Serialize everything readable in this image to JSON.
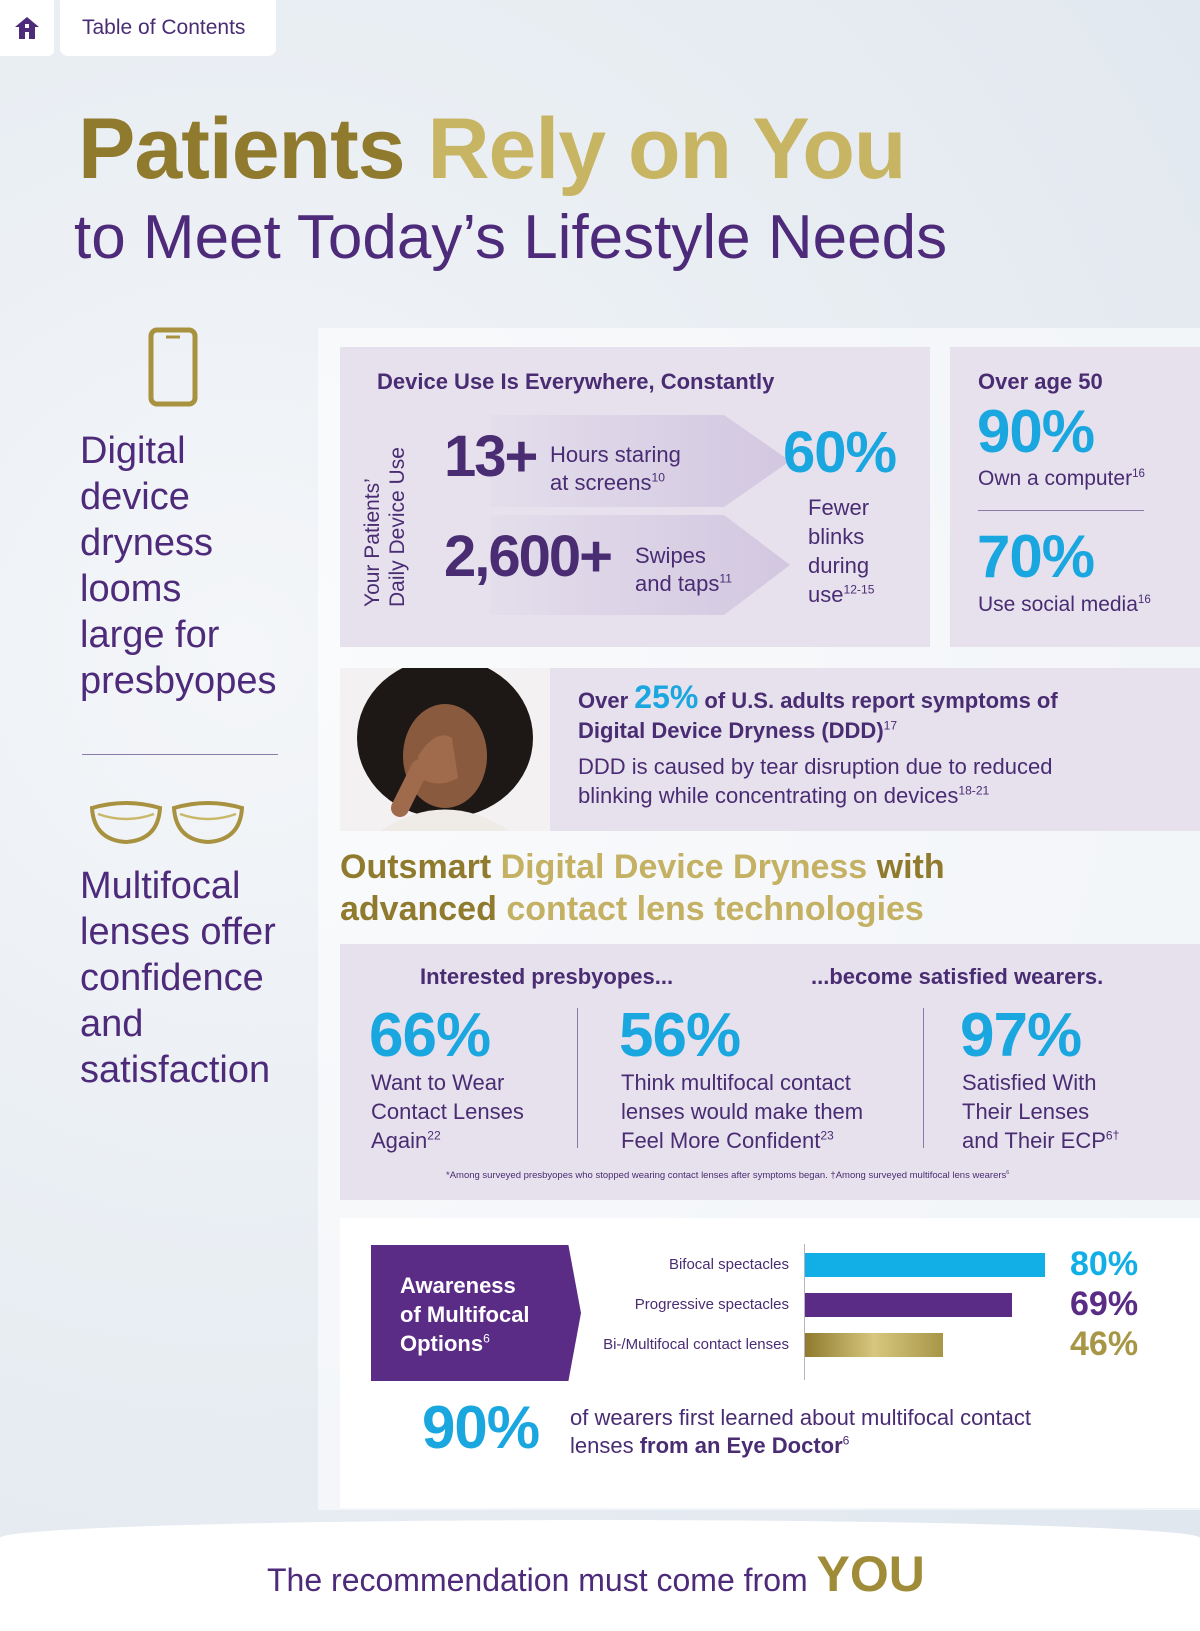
{
  "nav": {
    "home_icon": "home-icon",
    "toc_label": "Table of Contents"
  },
  "header": {
    "title_part1": "Patients ",
    "title_part2": "Rely on You",
    "subtitle": "to Meet Today’s Lifestyle Needs"
  },
  "left": {
    "phone_icon": "smartphone-icon",
    "dryness_text": [
      "Digital",
      "device",
      "dryness",
      "looms",
      "large for",
      "presbyopes"
    ],
    "lens_icon": "contact-lenses-icon",
    "multifocal_text": [
      "Multifocal",
      "lenses offer",
      "confidence",
      "and",
      "satisfaction"
    ]
  },
  "device_use": {
    "heading": "Device Use Is Everywhere, Constantly",
    "side_label_1": "Your Patients’",
    "side_label_2": "Daily Device Use",
    "stat1_value": "13+",
    "stat1_text_1": "Hours staring",
    "stat1_text_2": "at screens",
    "stat1_ref": "10",
    "stat2_value": "2,600+",
    "stat2_text_1": "Swipes",
    "stat2_text_2": "and taps",
    "stat2_ref": "11",
    "blink_value": "60%",
    "blink_text": [
      "Fewer",
      "blinks",
      "during",
      "use"
    ],
    "blink_ref": "12-15"
  },
  "over50": {
    "heading": "Over age 50",
    "stat1_value": "90%",
    "stat1_text": "Own a computer",
    "stat1_ref": "16",
    "stat2_value": "70%",
    "stat2_text": "Use social media",
    "stat2_ref": "16"
  },
  "ddd": {
    "lead_1": "Over ",
    "lead_pct": "25%",
    "lead_2": " of U.S. adults report symptoms of",
    "lead_3": "Digital Device Dryness (DDD)",
    "lead_ref": "17",
    "body_1": "DDD is caused by tear disruption due to reduced",
    "body_2": "blinking while concentrating on devices",
    "body_ref": "18-21"
  },
  "outsmart": {
    "line1_a": "Outsmart ",
    "line1_b": "Digital Device Dryness ",
    "line1_c": "with",
    "line2_a": "advanced ",
    "line2_b": "contact lens technologies"
  },
  "presbyopes": {
    "heading_left": "Interested presbyopes...",
    "heading_right": "...become satisfied wearers.",
    "stat1_value": "66%",
    "stat1_text": [
      "Want to Wear",
      "Contact Lenses",
      "Again"
    ],
    "stat1_ref": "22",
    "stat2_value": "56%",
    "stat2_text": [
      "Think multifocal contact",
      "lenses would make them",
      "Feel More Confident"
    ],
    "stat2_ref": "23",
    "stat3_value": "97%",
    "stat3_text": [
      "Satisfied With",
      "Their Lenses",
      "and Their ECP"
    ],
    "stat3_ref": "6†",
    "footnote": "*Among surveyed presbyopes who stopped wearing contact lenses after symptoms began.  †Among surveyed multifocal lens wearers",
    "footnote_ref": "6"
  },
  "awareness": {
    "badge_1": "Awareness",
    "badge_2": "of Multifocal",
    "badge_3": "Options",
    "badge_ref": "6",
    "bottom_value": "90%",
    "bottom_text_1": "of wearers first learned about multifocal contact",
    "bottom_text_2a": "lenses ",
    "bottom_text_2b": "from an Eye Doctor",
    "bottom_ref": "6"
  },
  "chart_data": {
    "type": "bar",
    "orientation": "horizontal",
    "categories": [
      "Bifocal spectacles",
      "Progressive spectacles",
      "Bi-/Multifocal contact lenses"
    ],
    "values": [
      80,
      69,
      46
    ],
    "value_labels": [
      "80%",
      "69%",
      "46%"
    ],
    "colors": [
      "#12aee6",
      "#5b2c86",
      "#a89647"
    ],
    "xlim": [
      0,
      100
    ]
  },
  "footer": {
    "text": "The recommendation must come from ",
    "emphasis": "YOU"
  }
}
